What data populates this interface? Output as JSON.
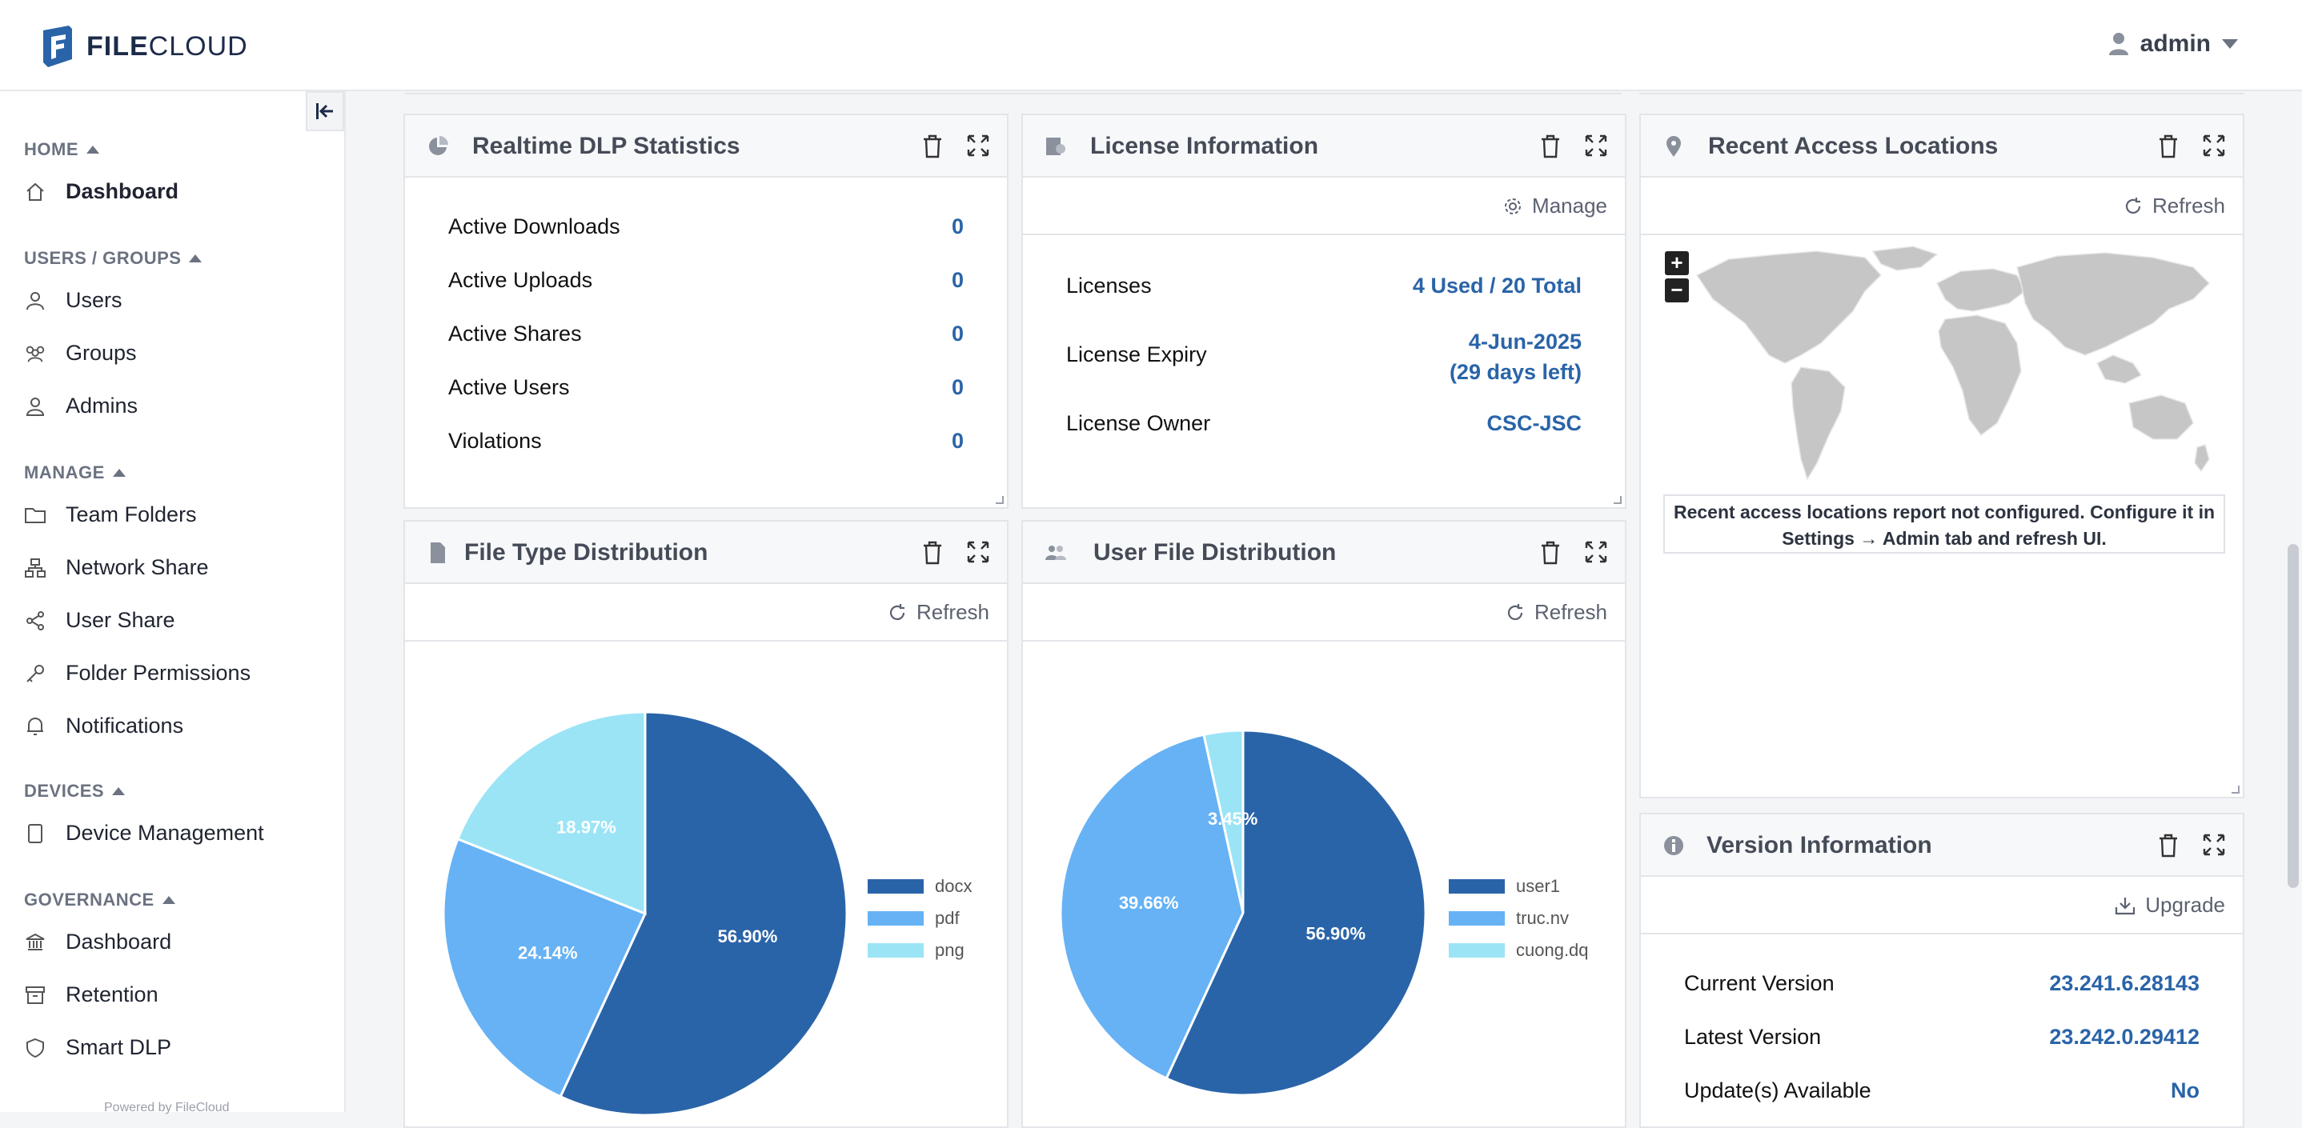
{
  "app": {
    "logo_text_bold": "FILE",
    "logo_text": "CLOUD",
    "user": "admin"
  },
  "sidebar": {
    "powered": "Powered by FileCloud",
    "sections": {
      "home": "HOME",
      "users": "USERS / GROUPS",
      "manage": "MANAGE",
      "devices": "DEVICES",
      "governance": "GOVERNANCE"
    },
    "items": {
      "dashboard": "Dashboard",
      "users": "Users",
      "groups": "Groups",
      "admins": "Admins",
      "team_folders": "Team Folders",
      "network_share": "Network Share",
      "user_share": "User Share",
      "folder_permissions": "Folder Permissions",
      "notifications": "Notifications",
      "device_management": "Device Management",
      "gov_dashboard": "Dashboard",
      "retention": "Retention",
      "smart_dlp": "Smart DLP"
    }
  },
  "dlp": {
    "title": "Realtime DLP Statistics",
    "rows": [
      {
        "label": "Active Downloads",
        "value": "0"
      },
      {
        "label": "Active Uploads",
        "value": "0"
      },
      {
        "label": "Active Shares",
        "value": "0"
      },
      {
        "label": "Active Users",
        "value": "0"
      },
      {
        "label": "Violations",
        "value": "0"
      }
    ]
  },
  "license": {
    "title": "License Information",
    "manage": "Manage",
    "rows": [
      {
        "label": "Licenses",
        "value": "4 Used / 20 Total"
      },
      {
        "label": "License Expiry",
        "value": "4-Jun-2025",
        "value2": "(29 days left)"
      },
      {
        "label": "License Owner",
        "value": "CSC-JSC"
      }
    ]
  },
  "access": {
    "title": "Recent Access Locations",
    "refresh": "Refresh",
    "zoom_in": "+",
    "zoom_out": "−",
    "note_line1": "Recent access locations report not configured. Configure it in",
    "note_line2": "Settings → Admin tab and refresh UI."
  },
  "filetype": {
    "title": "File Type Distribution",
    "refresh": "Refresh",
    "labels": [
      "56.90%",
      "24.14%",
      "18.97%"
    ]
  },
  "userfile": {
    "title": "User File Distribution",
    "refresh": "Refresh",
    "labels": [
      "56.90%",
      "39.66%",
      "3.45%"
    ]
  },
  "version": {
    "title": "Version Information",
    "upgrade": "Upgrade",
    "rows": [
      {
        "label": "Current Version",
        "value": "23.241.6.28143"
      },
      {
        "label": "Latest Version",
        "value": "23.242.0.29412"
      },
      {
        "label": "Update(s) Available",
        "value": "No"
      }
    ]
  },
  "colors": {
    "dark": "#2a64a8",
    "mid": "#66b2f5",
    "light": "#9be4f6"
  },
  "chart_data": [
    {
      "type": "pie",
      "categories": [
        "docx",
        "pdf",
        "png"
      ],
      "values": [
        56.9,
        24.14,
        18.97
      ]
    },
    {
      "type": "pie",
      "categories": [
        "user1",
        "truc.nv",
        "cuong.dq"
      ],
      "values": [
        56.9,
        39.66,
        3.45
      ]
    }
  ]
}
